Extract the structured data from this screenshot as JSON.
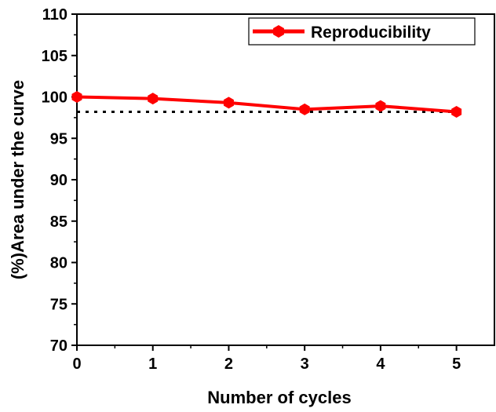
{
  "chart_data": {
    "type": "line",
    "xlabel": "Number of cycles",
    "ylabel": "(%)Area under the curve",
    "xlim": [
      0,
      5.5
    ],
    "ylim": [
      70,
      110
    ],
    "xticks": [
      0,
      1,
      2,
      3,
      4,
      5
    ],
    "yticks": [
      70,
      75,
      80,
      85,
      90,
      95,
      100,
      105,
      110
    ],
    "x": [
      0,
      1,
      2,
      3,
      4,
      5
    ],
    "series": [
      {
        "name": "Reproducibility",
        "values": [
          100.0,
          99.8,
          99.3,
          98.5,
          98.9,
          98.2
        ],
        "color": "#ff0000",
        "marker": "hexagon"
      }
    ],
    "reference_line": {
      "y": 98.2,
      "x_range": [
        0,
        5
      ],
      "style": "dotted",
      "color": "#000000"
    },
    "grid": false,
    "legend": {
      "position": "top-right",
      "entries": [
        "Reproducibility"
      ]
    }
  }
}
